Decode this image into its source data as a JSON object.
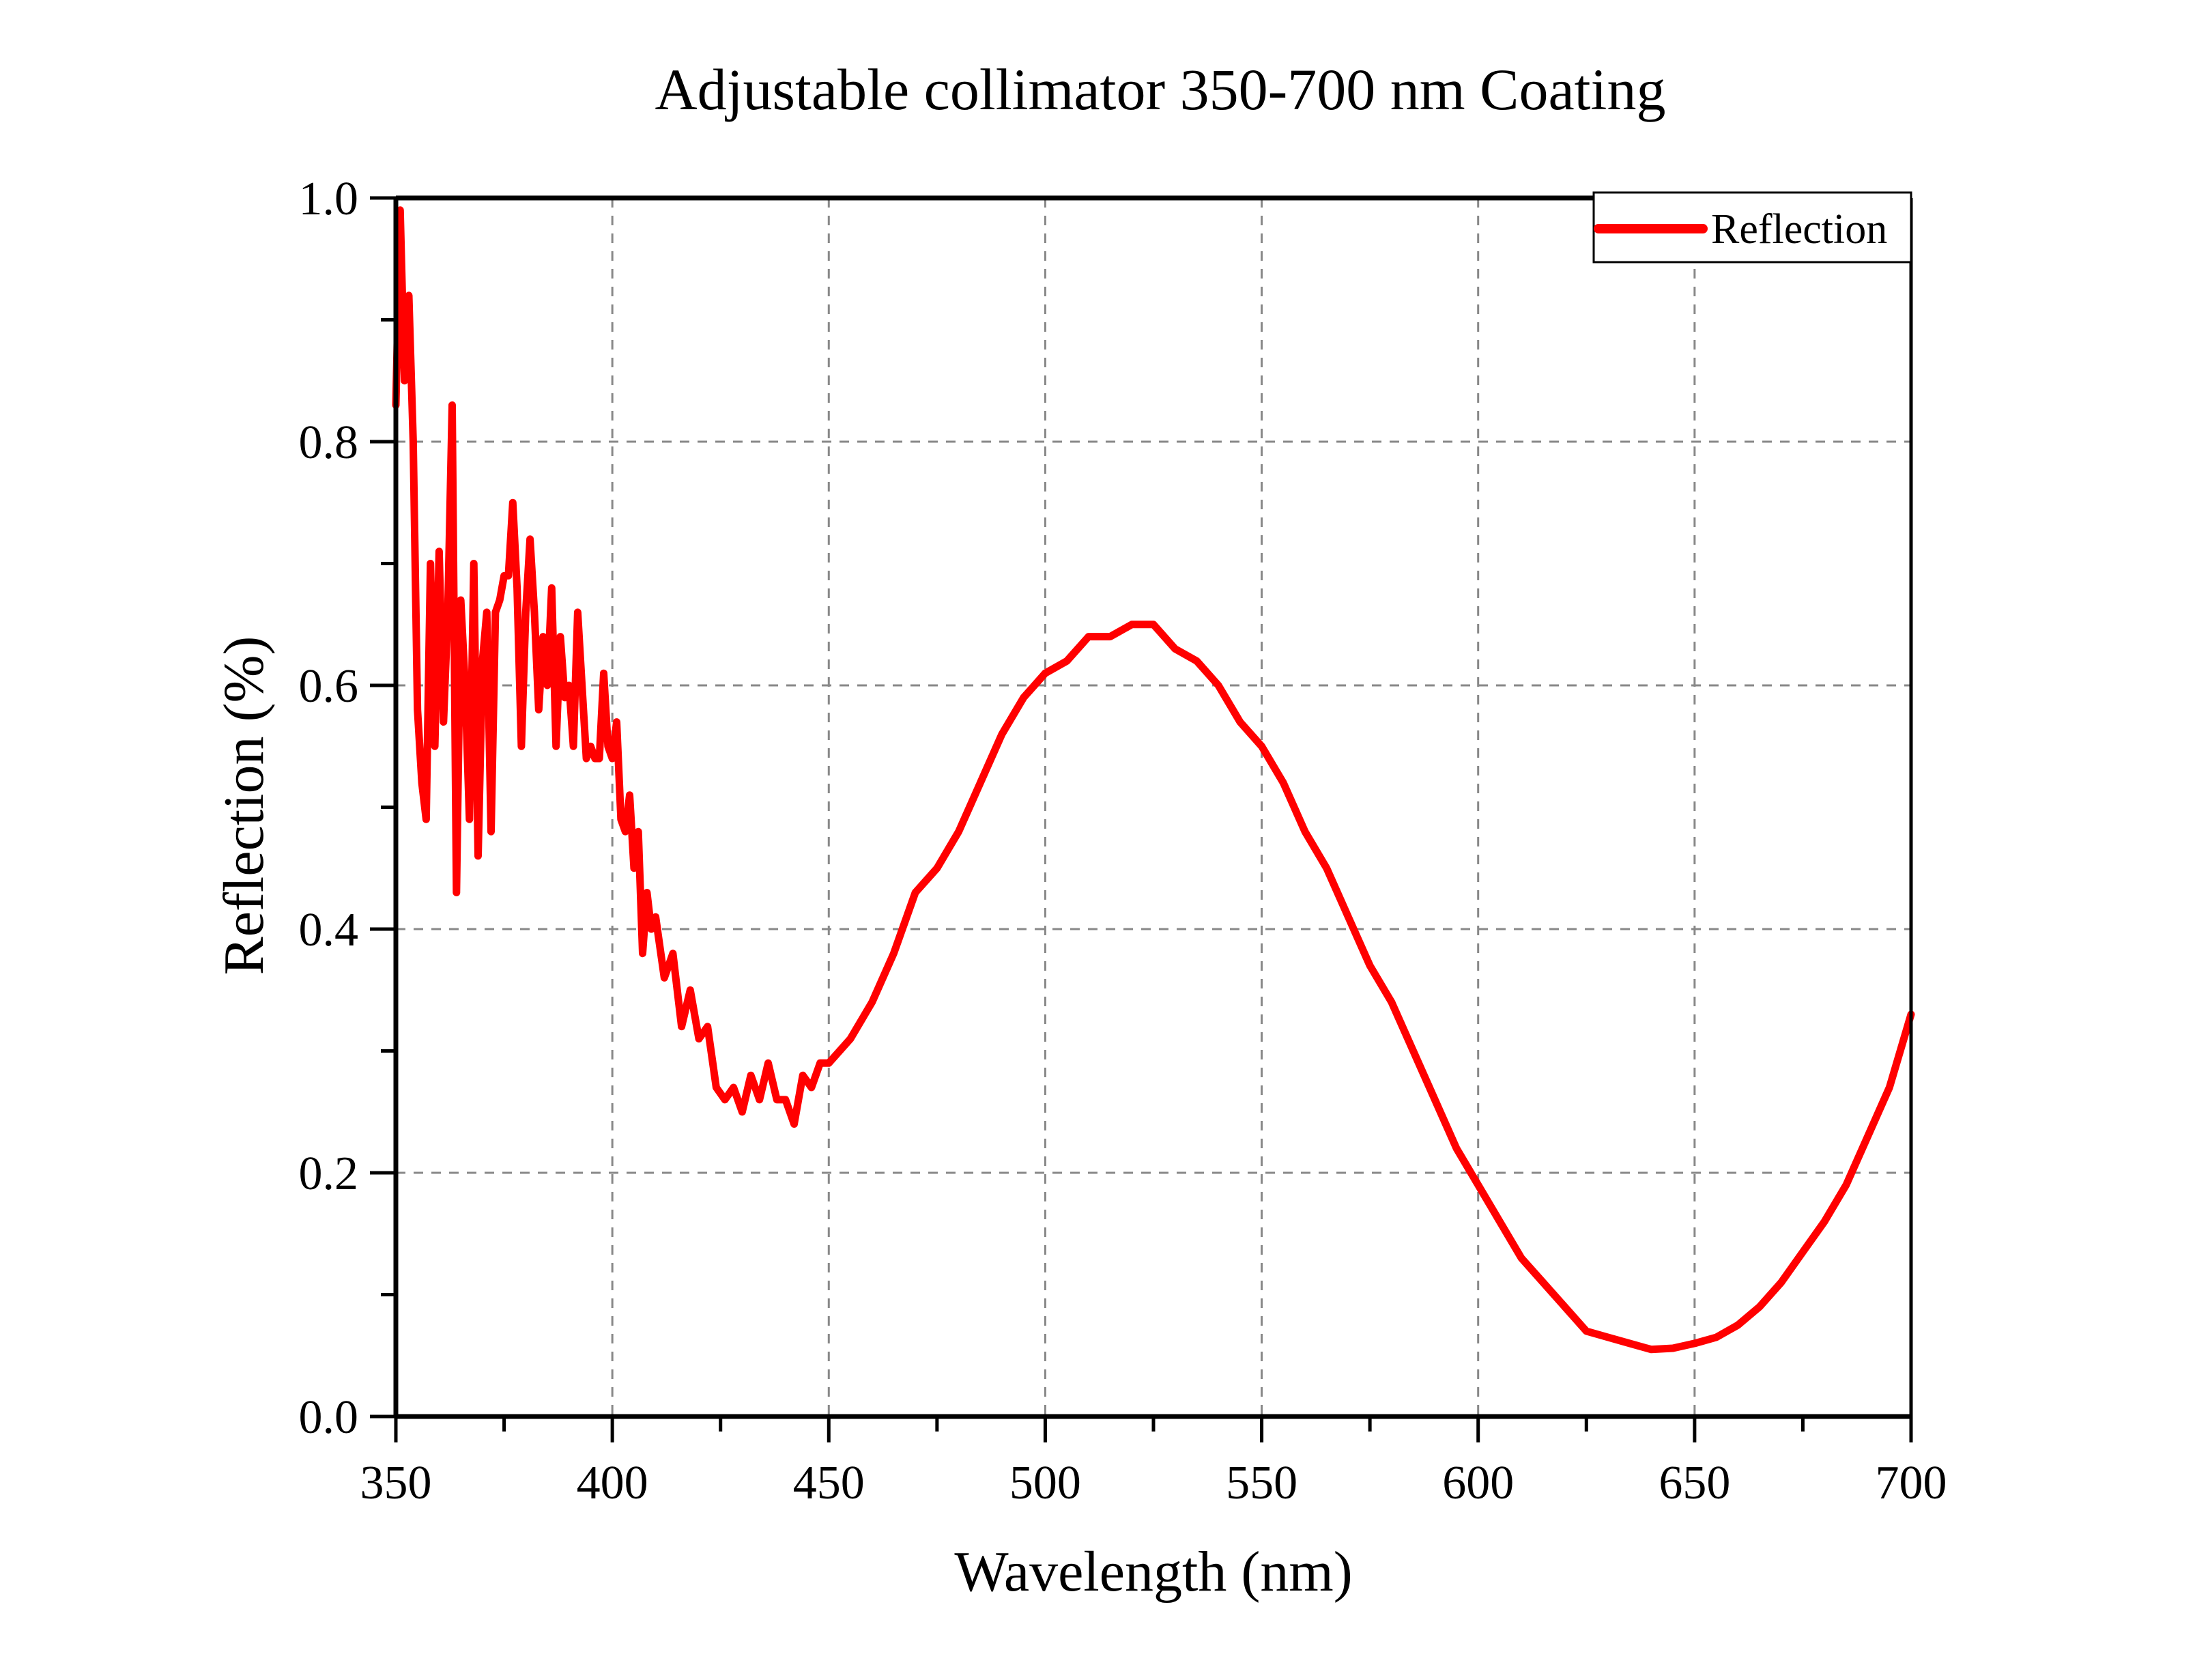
{
  "chart_data": {
    "type": "line",
    "title": "Adjustable collimator 350-700 nm Coating",
    "xlabel": "Wavelength (nm)",
    "ylabel": "Reflection (%)",
    "xlim": [
      350,
      700
    ],
    "ylim": [
      0.0,
      1.0
    ],
    "xticks": [
      350,
      400,
      450,
      500,
      550,
      600,
      650,
      700
    ],
    "xtick_labels": [
      "350",
      "400",
      "450",
      "500",
      "550",
      "600",
      "650",
      "700"
    ],
    "yticks": [
      0.0,
      0.2,
      0.4,
      0.6,
      0.8,
      1.0
    ],
    "ytick_labels": [
      "0.0",
      "0.2",
      "0.4",
      "0.6",
      "0.8",
      "1.0"
    ],
    "grid": true,
    "legend": {
      "position": "top-right",
      "entries": [
        "Reflection"
      ]
    },
    "series": [
      {
        "name": "Reflection",
        "color": "#ff0000",
        "x": [
          350,
          351,
          352,
          353,
          354,
          355,
          356,
          357,
          358,
          359,
          360,
          361,
          362,
          363,
          364,
          365,
          366,
          367,
          368,
          369,
          370,
          371,
          372,
          373,
          374,
          375,
          376,
          377,
          378,
          379,
          380,
          381,
          382,
          383,
          384,
          385,
          386,
          387,
          388,
          389,
          390,
          391,
          392,
          393,
          394,
          395,
          396,
          397,
          398,
          399,
          400,
          401,
          402,
          403,
          404,
          405,
          406,
          407,
          408,
          409,
          410,
          412,
          414,
          416,
          418,
          420,
          422,
          424,
          426,
          428,
          430,
          432,
          434,
          436,
          438,
          440,
          442,
          444,
          446,
          448,
          450,
          455,
          460,
          465,
          470,
          475,
          480,
          485,
          490,
          495,
          500,
          505,
          510,
          515,
          520,
          525,
          530,
          535,
          540,
          545,
          550,
          555,
          560,
          565,
          570,
          575,
          580,
          585,
          590,
          595,
          600,
          605,
          610,
          615,
          620,
          625,
          630,
          635,
          640,
          645,
          650,
          655,
          660,
          665,
          670,
          675,
          680,
          685,
          690,
          695,
          700
        ],
        "y": [
          0.83,
          0.99,
          0.85,
          0.92,
          0.8,
          0.58,
          0.52,
          0.49,
          0.7,
          0.55,
          0.71,
          0.57,
          0.66,
          0.83,
          0.43,
          0.67,
          0.6,
          0.49,
          0.7,
          0.46,
          0.62,
          0.66,
          0.48,
          0.66,
          0.67,
          0.69,
          0.69,
          0.75,
          0.68,
          0.55,
          0.66,
          0.72,
          0.66,
          0.58,
          0.64,
          0.6,
          0.68,
          0.55,
          0.64,
          0.59,
          0.6,
          0.55,
          0.66,
          0.6,
          0.54,
          0.55,
          0.54,
          0.54,
          0.61,
          0.55,
          0.54,
          0.57,
          0.49,
          0.48,
          0.51,
          0.45,
          0.48,
          0.38,
          0.43,
          0.4,
          0.41,
          0.36,
          0.38,
          0.32,
          0.35,
          0.31,
          0.32,
          0.27,
          0.26,
          0.27,
          0.25,
          0.28,
          0.26,
          0.29,
          0.26,
          0.26,
          0.24,
          0.28,
          0.27,
          0.29,
          0.29,
          0.31,
          0.34,
          0.38,
          0.43,
          0.45,
          0.48,
          0.52,
          0.56,
          0.59,
          0.61,
          0.62,
          0.64,
          0.64,
          0.65,
          0.65,
          0.63,
          0.62,
          0.6,
          0.57,
          0.55,
          0.52,
          0.48,
          0.45,
          0.41,
          0.37,
          0.34,
          0.3,
          0.26,
          0.22,
          0.19,
          0.16,
          0.13,
          0.11,
          0.09,
          0.07,
          0.065,
          0.06,
          0.055,
          0.056,
          0.06,
          0.065,
          0.075,
          0.09,
          0.11,
          0.135,
          0.16,
          0.19,
          0.23,
          0.27,
          0.33
        ]
      }
    ]
  }
}
